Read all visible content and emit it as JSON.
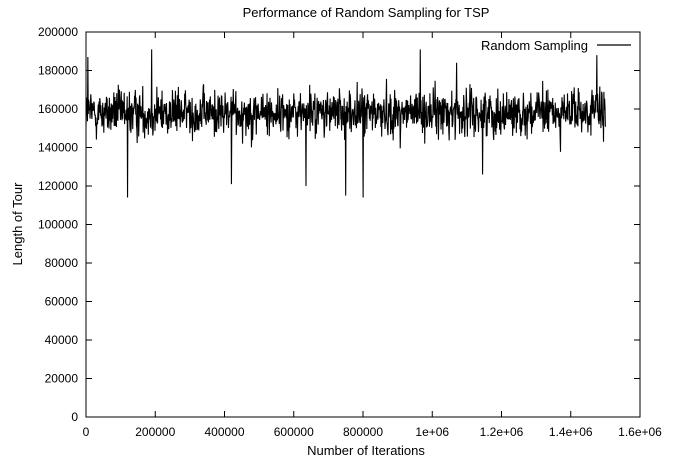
{
  "chart_data": {
    "type": "line",
    "title": "Performance of Random Sampling for TSP",
    "xlabel": "Number of Iterations",
    "ylabel": "Length of Tour",
    "xlim": [
      0,
      1600000
    ],
    "ylim": [
      0,
      200000
    ],
    "x_ticks": [
      0,
      200000,
      400000,
      600000,
      800000,
      1000000,
      1200000,
      1400000,
      1600000
    ],
    "x_tick_labels": [
      "0",
      "200000",
      "400000",
      "600000",
      "800000",
      "1e+06",
      "1.2e+06",
      "1.4e+06",
      "1.6e+06"
    ],
    "y_ticks": [
      0,
      20000,
      40000,
      60000,
      80000,
      100000,
      120000,
      140000,
      160000,
      180000,
      200000
    ],
    "y_tick_labels": [
      "0",
      "20000",
      "40000",
      "60000",
      "80000",
      "100000",
      "120000",
      "140000",
      "160000",
      "180000",
      "200000"
    ],
    "grid": false,
    "legend_position": "top-right",
    "series": [
      {
        "name": "Random Sampling",
        "color": "#000000",
        "x_start": 0,
        "x_end": 1500000,
        "typical_range": [
          140000,
          175000
        ],
        "center": 158000,
        "max": 191000,
        "min": 114000,
        "notable_points": [
          {
            "x": 5000,
            "y": 187000
          },
          {
            "x": 120000,
            "y": 114000
          },
          {
            "x": 190000,
            "y": 191000
          },
          {
            "x": 420000,
            "y": 121000
          },
          {
            "x": 635000,
            "y": 120000
          },
          {
            "x": 750000,
            "y": 115000
          },
          {
            "x": 800000,
            "y": 114000
          },
          {
            "x": 965000,
            "y": 191000
          },
          {
            "x": 1070000,
            "y": 184000
          },
          {
            "x": 1145000,
            "y": 126000
          },
          {
            "x": 1475000,
            "y": 188000
          },
          {
            "x": 1495000,
            "y": 143000
          }
        ]
      }
    ]
  }
}
